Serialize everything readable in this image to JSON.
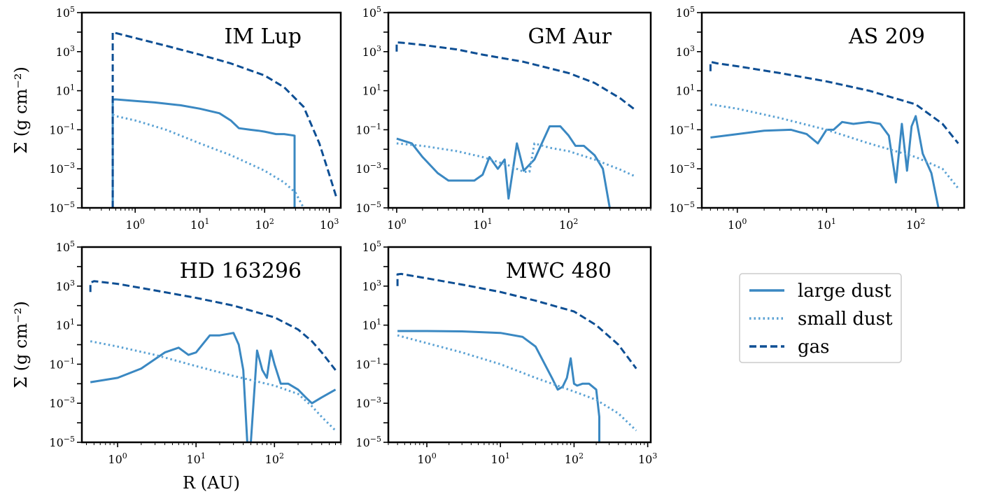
{
  "colors": {
    "large_dust": "#3a88c2",
    "small_dust": "#5ba2d4",
    "gas": "#0e4f94"
  },
  "legend": [
    {
      "key": "large_dust",
      "label": "large dust",
      "style": "solid"
    },
    {
      "key": "small_dust",
      "label": "small dust",
      "style": "dotted"
    },
    {
      "key": "gas",
      "label": "gas",
      "style": "dashed"
    }
  ],
  "chart_data": [
    {
      "type": "line",
      "title": "IM Lup",
      "xlabel": "",
      "ylabel": "Σ (g cm⁻²)",
      "xscale": "log",
      "yscale": "log",
      "xlim": [
        0.15,
        1500
      ],
      "ylim": [
        1e-05,
        100000.0
      ],
      "xticks": [
        "10^0",
        "10^1",
        "10^2",
        "10^3"
      ],
      "yticks": [
        "10^-5",
        "10^-3",
        "10^-1",
        "10^1",
        "10^3",
        "10^5"
      ],
      "series": [
        {
          "key": "large_dust",
          "x": [
            0.45,
            0.45,
            0.5,
            1,
            2,
            5,
            10,
            20,
            30,
            40,
            60,
            80,
            100,
            150,
            200,
            290,
            290
          ],
          "y": [
            1e-05,
            3.5,
            3.6,
            3.0,
            2.5,
            1.8,
            1.2,
            0.7,
            0.3,
            0.12,
            0.1,
            0.09,
            0.08,
            0.06,
            0.06,
            0.05,
            1e-05
          ]
        },
        {
          "key": "small_dust",
          "x": [
            0.45,
            0.5,
            1,
            3,
            10,
            30,
            100,
            200,
            300,
            400
          ],
          "y": [
            0.6,
            0.5,
            0.3,
            0.1,
            0.02,
            0.005,
            0.0008,
            0.0002,
            6e-05,
            1e-05
          ]
        },
        {
          "key": "gas",
          "x": [
            0.45,
            0.45,
            0.5,
            1,
            3,
            10,
            30,
            100,
            200,
            400,
            700,
            1000,
            1300
          ],
          "y": [
            1e-05,
            10000.0,
            9000,
            5000,
            2000,
            700,
            250,
            60,
            15,
            1.5,
            0.02,
            0.0005,
            3e-05
          ]
        }
      ]
    },
    {
      "type": "line",
      "title": "GM Aur",
      "xlabel": "",
      "ylabel": "",
      "xscale": "log",
      "yscale": "log",
      "xlim": [
        0.8,
        900
      ],
      "ylim": [
        1e-05,
        100000.0
      ],
      "xticks": [
        "10^0",
        "10^1",
        "10^2"
      ],
      "yticks": [
        "10^-5",
        "10^-3",
        "10^-1",
        "10^1",
        "10^3",
        "10^5"
      ],
      "series": [
        {
          "key": "large_dust",
          "x": [
            1,
            1.5,
            2,
            3,
            4,
            6,
            8,
            10,
            12,
            15,
            18,
            20,
            25,
            30,
            40,
            60,
            80,
            100,
            120,
            150,
            200,
            250,
            300
          ],
          "y": [
            0.035,
            0.02,
            0.004,
            0.0006,
            0.00025,
            0.00025,
            0.00025,
            0.0005,
            0.004,
            0.001,
            0.003,
            3e-05,
            0.02,
            0.0008,
            0.003,
            0.15,
            0.15,
            0.05,
            0.015,
            0.015,
            0.005,
            0.001,
            1e-05
          ]
        },
        {
          "key": "small_dust",
          "x": [
            1,
            2,
            5,
            10,
            20,
            30,
            35,
            40,
            60,
            100,
            200,
            400,
            600
          ],
          "y": [
            0.02,
            0.015,
            0.008,
            0.004,
            0.0015,
            0.0007,
            0.0007,
            0.02,
            0.012,
            0.008,
            0.003,
            0.0009,
            0.0004
          ]
        },
        {
          "key": "gas",
          "x": [
            1,
            1,
            1.2,
            2,
            5,
            10,
            30,
            100,
            200,
            400,
            600
          ],
          "y": [
            1000,
            3000,
            2800,
            2200,
            1300,
            700,
            300,
            80,
            25,
            4,
            1
          ]
        }
      ]
    },
    {
      "type": "line",
      "title": "AS 209",
      "xlabel": "",
      "ylabel": "",
      "xscale": "log",
      "yscale": "log",
      "xlim": [
        0.4,
        350
      ],
      "ylim": [
        1e-05,
        100000.0
      ],
      "xticks": [
        "10^0",
        "10^1",
        "10^2"
      ],
      "yticks": [
        "10^-5",
        "10^-3",
        "10^-1",
        "10^1",
        "10^3",
        "10^5"
      ],
      "series": [
        {
          "key": "large_dust",
          "x": [
            0.5,
            1,
            2,
            4,
            6,
            8,
            10,
            12,
            15,
            20,
            30,
            40,
            50,
            60,
            70,
            80,
            90,
            100,
            120,
            150,
            180
          ],
          "y": [
            0.04,
            0.06,
            0.09,
            0.1,
            0.06,
            0.02,
            0.1,
            0.1,
            0.25,
            0.2,
            0.25,
            0.2,
            0.05,
            0.0002,
            0.2,
            0.0008,
            0.15,
            0.5,
            0.006,
            0.0006,
            1e-05
          ]
        },
        {
          "key": "small_dust",
          "x": [
            0.5,
            1,
            3,
            10,
            30,
            100,
            200,
            300
          ],
          "y": [
            2,
            1.2,
            0.4,
            0.1,
            0.02,
            0.004,
            0.001,
            0.0001
          ]
        },
        {
          "key": "gas",
          "x": [
            0.5,
            0.5,
            0.6,
            1,
            3,
            10,
            30,
            100,
            200,
            300
          ],
          "y": [
            100,
            300,
            250,
            180,
            80,
            30,
            10,
            2,
            0.2,
            0.02
          ]
        }
      ]
    },
    {
      "type": "line",
      "title": "HD 163296",
      "xlabel": "R (AU)",
      "ylabel": "Σ (g cm⁻²)",
      "xscale": "log",
      "yscale": "log",
      "xlim": [
        0.35,
        700
      ],
      "ylim": [
        1e-05,
        100000.0
      ],
      "xticks": [
        "10^0",
        "10^1",
        "10^2"
      ],
      "yticks": [
        "10^-5",
        "10^-3",
        "10^-1",
        "10^1",
        "10^3",
        "10^5"
      ],
      "series": [
        {
          "key": "large_dust",
          "x": [
            0.45,
            1,
            2,
            4,
            6,
            8,
            10,
            15,
            20,
            25,
            30,
            35,
            40,
            45,
            50,
            60,
            70,
            80,
            90,
            100,
            120,
            150,
            200,
            250,
            300,
            400,
            600
          ],
          "y": [
            0.012,
            0.02,
            0.06,
            0.4,
            0.7,
            0.3,
            0.4,
            3,
            3,
            3.5,
            4,
            1,
            0.05,
            1e-05,
            1e-05,
            0.5,
            0.05,
            0.02,
            0.5,
            0.1,
            0.01,
            0.01,
            0.005,
            0.002,
            0.001,
            0.002,
            0.005
          ]
        },
        {
          "key": "small_dust",
          "x": [
            0.45,
            1,
            3,
            10,
            30,
            100,
            200,
            300,
            400,
            600
          ],
          "y": [
            1.5,
            0.8,
            0.3,
            0.08,
            0.025,
            0.008,
            0.003,
            0.0007,
            0.0002,
            4e-05
          ]
        },
        {
          "key": "gas",
          "x": [
            0.45,
            0.45,
            0.5,
            1,
            3,
            10,
            30,
            100,
            200,
            300,
            400,
            600
          ],
          "y": [
            500,
            1500,
            1800,
            1300,
            600,
            250,
            100,
            25,
            6,
            1.5,
            0.4,
            0.05
          ]
        }
      ]
    },
    {
      "type": "line",
      "title": "MWC 480",
      "xlabel": "",
      "ylabel": "",
      "xscale": "log",
      "yscale": "log",
      "xlim": [
        0.3,
        1100
      ],
      "ylim": [
        1e-05,
        100000.0
      ],
      "xticks": [
        "10^0",
        "10^1",
        "10^2",
        "10^3"
      ],
      "yticks": [
        "10^-5",
        "10^-3",
        "10^-1",
        "10^1",
        "10^3",
        "10^5"
      ],
      "series": [
        {
          "key": "large_dust",
          "x": [
            0.4,
            1,
            3,
            10,
            20,
            30,
            40,
            50,
            60,
            70,
            80,
            90,
            100,
            110,
            130,
            160,
            200,
            220,
            220
          ],
          "y": [
            5,
            5,
            4.8,
            4,
            2.5,
            0.8,
            0.1,
            0.02,
            0.005,
            0.007,
            0.02,
            0.2,
            0.01,
            0.008,
            0.01,
            0.01,
            0.005,
            0.0002,
            1e-05
          ]
        },
        {
          "key": "small_dust",
          "x": [
            0.4,
            1,
            3,
            10,
            30,
            100,
            200,
            400,
            700
          ],
          "y": [
            3,
            1.2,
            0.4,
            0.1,
            0.02,
            0.004,
            0.0015,
            0.0003,
            4e-05
          ]
        },
        {
          "key": "gas",
          "x": [
            0.4,
            0.4,
            0.45,
            1,
            3,
            10,
            30,
            100,
            200,
            400,
            700
          ],
          "y": [
            1000,
            4000,
            4200,
            2500,
            1200,
            500,
            180,
            50,
            10,
            1,
            0.06
          ]
        }
      ]
    }
  ]
}
